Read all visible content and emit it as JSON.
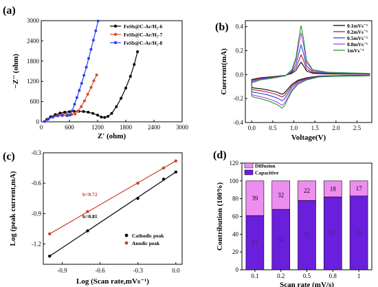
{
  "panels": {
    "a": "(a)",
    "b": "(b)",
    "c": "(c)",
    "d": "(d)"
  },
  "chart_data": [
    {
      "id": "a",
      "type": "scatter",
      "xlabel": "Z' (ohm)",
      "ylabel": "−Z'' (ohm)",
      "xlim": [
        0,
        3000
      ],
      "ylim": [
        0,
        3000
      ],
      "xticks": [
        "0",
        "600",
        "1200",
        "1800",
        "2400",
        "3000"
      ],
      "yticks": [
        "0",
        "600",
        "1200",
        "1800",
        "2400",
        "3000"
      ],
      "legend_position": "top-right",
      "series": [
        {
          "name": "FeSb@C-Ar/H₂-6",
          "color": "#000000",
          "points": [
            [
              70,
              10
            ],
            [
              120,
              70
            ],
            [
              200,
              150
            ],
            [
              300,
              215
            ],
            [
              400,
              260
            ],
            [
              500,
              285
            ],
            [
              600,
              300
            ],
            [
              700,
              310
            ],
            [
              800,
              312
            ],
            [
              900,
              305
            ],
            [
              1000,
              285
            ],
            [
              1100,
              250
            ],
            [
              1200,
              200
            ],
            [
              1280,
              140
            ],
            [
              1350,
              130
            ],
            [
              1420,
              160
            ],
            [
              1500,
              250
            ],
            [
              1600,
              450
            ],
            [
              1700,
              700
            ],
            [
              1800,
              1000
            ],
            [
              1900,
              1350
            ],
            [
              1980,
              1700
            ],
            [
              2050,
              2080
            ]
          ]
        },
        {
          "name": "FeSb@C-Ar/H₂-7",
          "color": "#d9492f",
          "points": [
            [
              70,
              10
            ],
            [
              150,
              90
            ],
            [
              250,
              160
            ],
            [
              350,
              200
            ],
            [
              450,
              225
            ],
            [
              550,
              230
            ],
            [
              650,
              220
            ],
            [
              720,
              230
            ],
            [
              780,
              320
            ],
            [
              850,
              450
            ],
            [
              920,
              620
            ],
            [
              990,
              820
            ],
            [
              1060,
              1020
            ],
            [
              1120,
              1220
            ],
            [
              1180,
              1390
            ]
          ]
        },
        {
          "name": "FeSb@C-Ar/H₂-8",
          "color": "#2b3ff0",
          "points": [
            [
              70,
              10
            ],
            [
              150,
              80
            ],
            [
              250,
              140
            ],
            [
              350,
              175
            ],
            [
              450,
              185
            ],
            [
              550,
              180
            ],
            [
              610,
              200
            ],
            [
              660,
              330
            ],
            [
              710,
              520
            ],
            [
              760,
              720
            ],
            [
              810,
              930
            ],
            [
              860,
              1140
            ],
            [
              910,
              1380
            ],
            [
              960,
              1620
            ],
            [
              1010,
              1880
            ],
            [
              1060,
              2150
            ],
            [
              1110,
              2420
            ],
            [
              1160,
              2700
            ],
            [
              1210,
              2990
            ]
          ]
        }
      ]
    },
    {
      "id": "b",
      "type": "line",
      "xlabel": "Voltage(V)",
      "ylabel": "Cuerrent(mA)",
      "xlim": [
        -0.15,
        2.85
      ],
      "ylim": [
        -0.4,
        0.45
      ],
      "xticks": [
        "0.0",
        "0.5",
        "1.0",
        "1.5",
        "2.0",
        "2.5"
      ],
      "yticks": [
        "-0.4",
        "-0.2",
        "0.0",
        "0.2",
        "0.4"
      ],
      "legend_position": "top-right",
      "series": [
        {
          "name": "0.1mVs⁻¹",
          "color": "#000000",
          "scale": 0.25
        },
        {
          "name": "0.2mVs⁻¹",
          "color": "#b5171b",
          "scale": 0.4
        },
        {
          "name": "0.5mVs⁻¹",
          "color": "#2b3ff0",
          "scale": 0.6
        },
        {
          "name": "0.8mVs⁻¹",
          "color": "#b13fd8",
          "scale": 0.85
        },
        {
          "name": "1mVs⁻¹",
          "color": "#1e9a2a",
          "scale": 1.0
        }
      ],
      "base_cv": {
        "upper": [
          [
            0,
            -0.07
          ],
          [
            0.2,
            -0.045
          ],
          [
            0.5,
            -0.03
          ],
          [
            0.8,
            -0.01
          ],
          [
            0.95,
            0.04
          ],
          [
            1.05,
            0.14
          ],
          [
            1.12,
            0.3
          ],
          [
            1.17,
            0.41
          ],
          [
            1.23,
            0.3
          ],
          [
            1.3,
            0.12
          ],
          [
            1.45,
            0.04
          ],
          [
            1.8,
            0.02
          ],
          [
            2.2,
            0.015
          ],
          [
            2.6,
            0.012
          ],
          [
            2.8,
            0.01
          ]
        ],
        "lower": [
          [
            2.8,
            -0.01
          ],
          [
            2.5,
            -0.012
          ],
          [
            2.0,
            -0.015
          ],
          [
            1.6,
            -0.02
          ],
          [
            1.3,
            -0.045
          ],
          [
            1.1,
            -0.08
          ],
          [
            0.95,
            -0.14
          ],
          [
            0.85,
            -0.21
          ],
          [
            0.78,
            -0.26
          ],
          [
            0.72,
            -0.28
          ],
          [
            0.6,
            -0.25
          ],
          [
            0.4,
            -0.22
          ],
          [
            0.2,
            -0.2
          ],
          [
            0.05,
            -0.19
          ],
          [
            0,
            -0.18
          ]
        ]
      }
    },
    {
      "id": "c",
      "type": "scatter",
      "xlabel": "Log (Scan rate,mVs⁻¹)",
      "ylabel": "Log (peak current,mA)",
      "xlim": [
        -1.05,
        0.05
      ],
      "ylim": [
        -1.4,
        -0.3
      ],
      "xticks": [
        "-0.9",
        "-0.6",
        "-0.3",
        "0.0"
      ],
      "yticks": [
        "-0.3",
        "-0.6",
        "-0.9",
        "-1.2"
      ],
      "legend_position": "bottom-right",
      "series": [
        {
          "name": "Cathodic peak",
          "color": "#000000",
          "x": [
            -1.0,
            -0.699,
            -0.301,
            -0.097,
            0.0
          ],
          "y": [
            -1.32,
            -1.07,
            -0.75,
            -0.56,
            -0.49
          ],
          "annotation": "b=0.81"
        },
        {
          "name": "Anodic peak",
          "color": "#c8412a",
          "x": [
            -1.0,
            -0.699,
            -0.301,
            -0.097,
            0.0
          ],
          "y": [
            -1.1,
            -0.88,
            -0.6,
            -0.45,
            -0.38
          ],
          "annotation": "b=0.72"
        }
      ]
    },
    {
      "id": "d",
      "type": "bar",
      "xlabel": "Scan rate (mV/s)",
      "ylabel": "Contribution (100%)",
      "ylim": [
        0,
        120
      ],
      "yticks": [
        "0",
        "20",
        "40",
        "60",
        "80",
        "100",
        "120"
      ],
      "categories": [
        "0.1",
        "0.2",
        "0.5",
        "0.8",
        "1"
      ],
      "legend_position": "top-left",
      "series": [
        {
          "name": "Capacitive",
          "color": "#6a1fdc",
          "values": [
            61,
            68,
            78,
            82,
            83
          ]
        },
        {
          "name": "Diffusion",
          "color": "#ee8df0",
          "values": [
            39,
            32,
            22,
            18,
            17
          ]
        }
      ]
    }
  ]
}
